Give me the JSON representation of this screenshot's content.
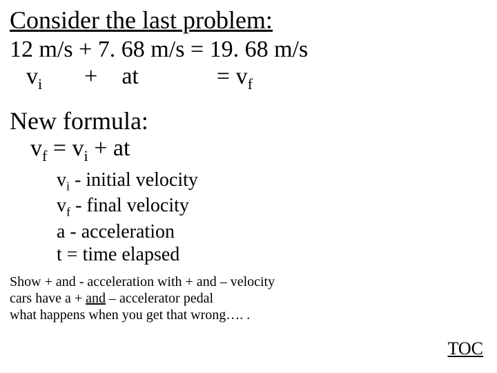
{
  "title": "Consider the last problem:",
  "equation": {
    "line1": "12 m/s + 7. 68 m/s = 19. 68 m/s",
    "line2": {
      "vi_v": "v",
      "vi_sub": "i",
      "plus": "+",
      "at": "at",
      "eq": "=",
      "vf_v": "v",
      "vf_sub": "f"
    }
  },
  "new_formula_label": "New formula:",
  "formula": {
    "vf_v": "v",
    "vf_sub": "f",
    "eq": " = ",
    "vi_v": "v",
    "vi_sub": "i",
    "plus_at": " + at"
  },
  "defs": {
    "l1": {
      "v": "v",
      "sub": "i",
      "rest": " - initial velocity"
    },
    "l2": {
      "v": "v",
      "sub": "f",
      "rest": " - final velocity"
    },
    "l3": "a - acceleration",
    "l4": "t = time elapsed"
  },
  "notes": {
    "l1": "Show + and - acceleration with + and – velocity",
    "l2_a": "cars have a + ",
    "l2_b": "and",
    "l2_c": " – accelerator pedal",
    "l3": "what happens when you get that wrong…. ."
  },
  "toc": "TOC",
  "colors": {
    "text": "#000000",
    "bg": "#ffffff"
  },
  "fonts": {
    "family": "Times New Roman",
    "title_pt": 36,
    "body_pt": 34,
    "defs_pt": 28,
    "notes_pt": 20,
    "toc_pt": 26
  }
}
